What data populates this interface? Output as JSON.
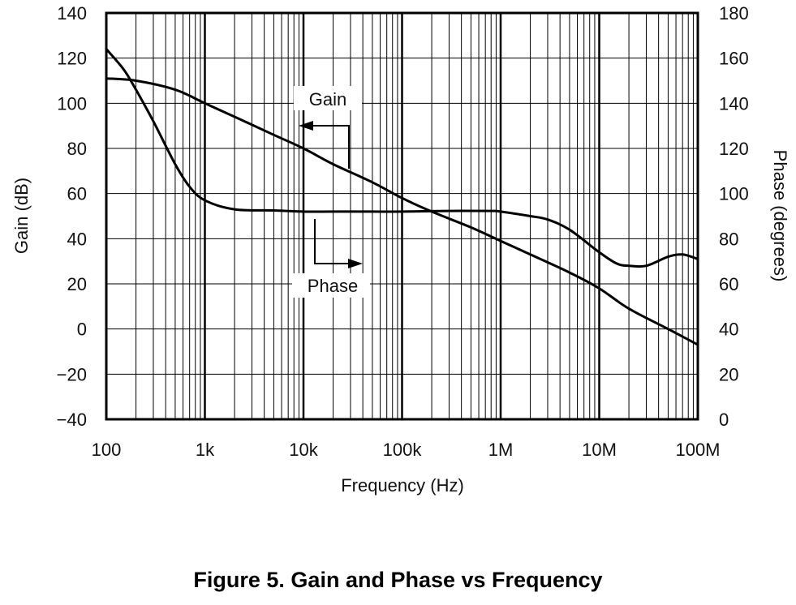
{
  "figure_caption": "Figure 5. Gain and Phase vs Frequency",
  "chart_data": {
    "type": "line",
    "xlabel": "Frequency (Hz)",
    "ylabel": "Gain (dB)",
    "ylabel_right": "Phase (degrees)",
    "x_scale": "log",
    "xlim": [
      100,
      100000000
    ],
    "ylim": [
      -40,
      140
    ],
    "ylim_right": [
      0,
      180
    ],
    "x_ticks": [
      100,
      1000,
      10000,
      100000,
      1000000,
      10000000,
      100000000
    ],
    "x_tick_labels": [
      "100",
      "1k",
      "10k",
      "100k",
      "1M",
      "10M",
      "100M"
    ],
    "y_ticks": [
      -40,
      -20,
      0,
      20,
      40,
      60,
      80,
      100,
      120,
      140
    ],
    "y_tick_labels": [
      "−40",
      "−20",
      "0",
      "20",
      "40",
      "60",
      "80",
      "100",
      "120",
      "140"
    ],
    "y_right_ticks": [
      0,
      20,
      40,
      60,
      80,
      100,
      120,
      140,
      160,
      180
    ],
    "y_right_tick_labels": [
      "0",
      "20",
      "40",
      "60",
      "80",
      "100",
      "120",
      "140",
      "160",
      "180"
    ],
    "grid": true,
    "series": [
      {
        "name": "Gain",
        "axis": "left",
        "x": [
          100,
          200,
          500,
          1000,
          2000,
          5000,
          10000,
          20000,
          50000,
          100000,
          200000,
          500000,
          1000000,
          2000000,
          5000000,
          10000000,
          20000000,
          50000000,
          100000000
        ],
        "y": [
          111,
          110,
          106,
          100,
          94,
          86,
          80,
          73,
          65,
          58,
          52,
          45,
          39,
          33,
          25,
          18,
          9,
          0,
          -7
        ]
      },
      {
        "name": "Phase",
        "axis": "right",
        "x": [
          100,
          150,
          200,
          300,
          500,
          700,
          1000,
          2000,
          5000,
          10000,
          20000,
          50000,
          100000,
          300000,
          800000,
          1000000,
          2000000,
          3000000,
          5000000,
          10000000,
          15000000,
          20000000,
          30000000,
          50000000,
          70000000,
          100000000
        ],
        "y": [
          164,
          155,
          146,
          132,
          113,
          103,
          97,
          93,
          92.5,
          92,
          92,
          92,
          92,
          92.3,
          92.3,
          92,
          90,
          88.5,
          84,
          74,
          69,
          68,
          68,
          72,
          73,
          71
        ]
      }
    ],
    "annotations": [
      {
        "text": "Gain",
        "points_to": "Gain",
        "axis": "left"
      },
      {
        "text": "Phase",
        "points_to": "Phase",
        "axis": "right"
      }
    ]
  }
}
